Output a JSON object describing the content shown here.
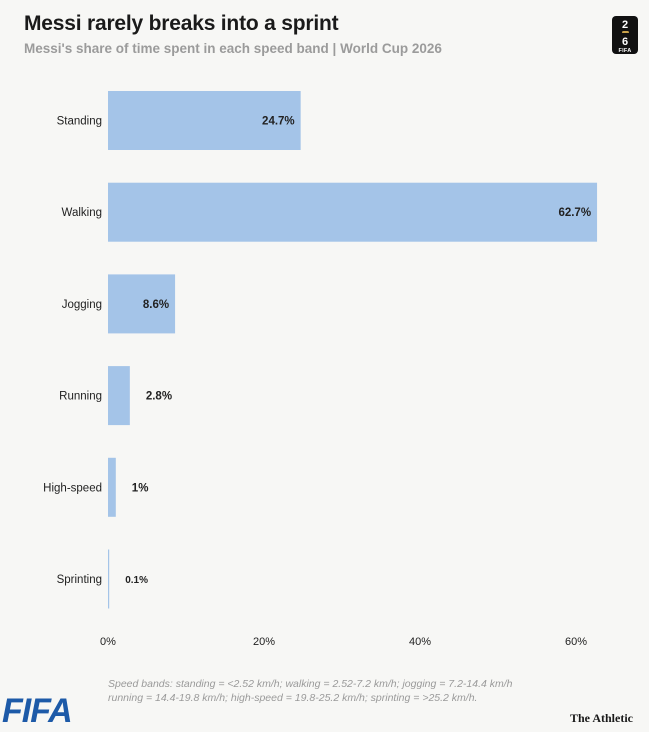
{
  "header": {
    "title": "Messi rarely breaks into a sprint",
    "subtitle": "Messi's share of time spent in each speed band | World Cup 2026"
  },
  "logo": {
    "digits_top": "2",
    "digits_bottom": "6",
    "label": "FIFA",
    "icon": "world-cup-2026-logo"
  },
  "chart_data": {
    "type": "bar",
    "orientation": "horizontal",
    "categories": [
      "Standing",
      "Walking",
      "Jogging",
      "Running",
      "High-speed",
      "Sprinting"
    ],
    "values": [
      24.7,
      62.7,
      8.6,
      2.8,
      1,
      0.1
    ],
    "value_labels": [
      "24.7%",
      "62.7%",
      "8.6%",
      "2.8%",
      "1%",
      "0.1%"
    ],
    "xlim": [
      0,
      65
    ],
    "ticks": [
      0,
      20,
      40,
      60
    ],
    "tick_labels": [
      "0%",
      "20%",
      "40%",
      "60%"
    ],
    "bar_color": "#a4c4e8",
    "grid": false
  },
  "footnote": {
    "line1": "Speed bands: standing = <2.52 km/h; walking = 2.52-7.2 km/h; jogging = 7.2-14.4 km/h",
    "line2": "running = 14.4-19.8 km/h; high-speed = 19.8-25.2 km/h; sprinting = >25.2 km/h."
  },
  "branding": {
    "fifa": "FIFA",
    "publisher": "The Athletic"
  }
}
